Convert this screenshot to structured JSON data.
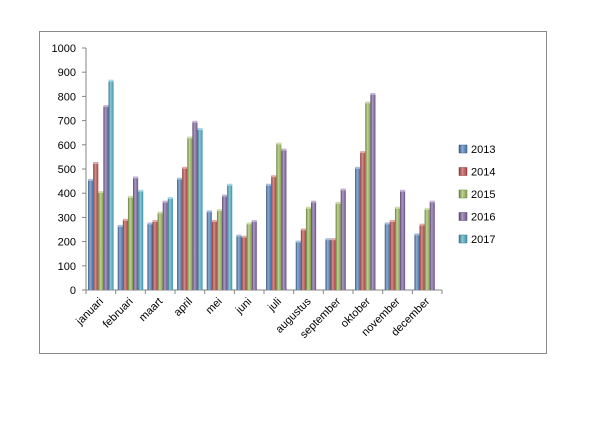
{
  "chart_data": {
    "type": "bar",
    "title": "",
    "xlabel": "",
    "ylabel": "",
    "ylim": [
      0,
      1000
    ],
    "yticks": [
      0,
      100,
      200,
      300,
      400,
      500,
      600,
      700,
      800,
      900,
      1000
    ],
    "grid": false,
    "bar_style": "3d-gradient",
    "legend_position": "right",
    "categories": [
      "januari",
      "februari",
      "maart",
      "april",
      "mei",
      "juni",
      "juli",
      "augustus",
      "september",
      "oktober",
      "november",
      "december"
    ],
    "series": [
      {
        "name": "2013",
        "color": "#4F81BD",
        "values": [
          455,
          265,
          275,
          460,
          325,
          225,
          435,
          200,
          210,
          505,
          275,
          230
        ]
      },
      {
        "name": "2014",
        "color": "#C0504D",
        "values": [
          525,
          290,
          285,
          505,
          285,
          220,
          470,
          250,
          210,
          570,
          285,
          270
        ]
      },
      {
        "name": "2015",
        "color": "#9BBB59",
        "values": [
          405,
          385,
          320,
          630,
          330,
          275,
          605,
          340,
          360,
          775,
          340,
          335
        ]
      },
      {
        "name": "2016",
        "color": "#8064A2",
        "values": [
          760,
          465,
          365,
          695,
          390,
          285,
          580,
          365,
          415,
          810,
          410,
          365
        ]
      },
      {
        "name": "2017",
        "color": "#4BACC6",
        "values": [
          865,
          410,
          380,
          665,
          435,
          null,
          null,
          null,
          null,
          null,
          null,
          null
        ]
      }
    ]
  }
}
